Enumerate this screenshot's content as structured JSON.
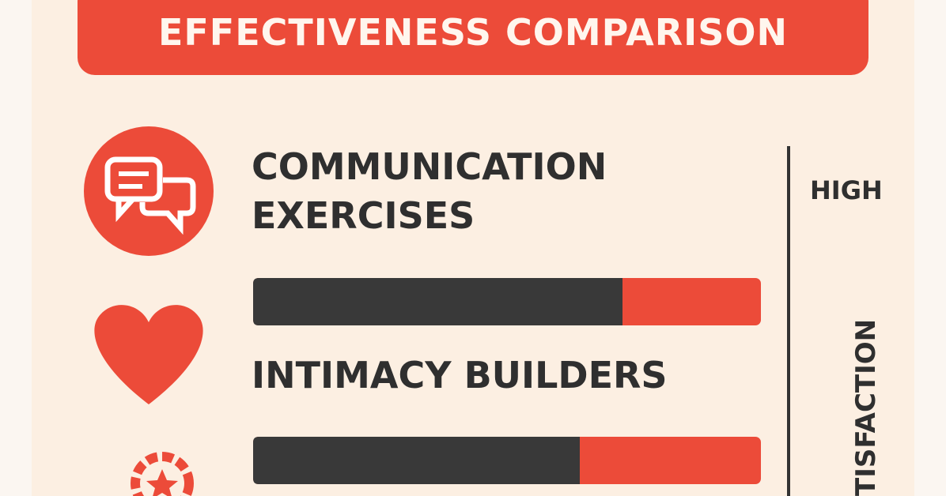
{
  "header": {
    "title": "EFFECTIVENESS COMPARISON"
  },
  "items": [
    {
      "label": "COMMUNICATION EXERCISES"
    },
    {
      "label": "INTIMACY BUILDERS"
    }
  ],
  "scale": {
    "top_label": "HIGH",
    "axis_label": "TISFACTION"
  }
}
